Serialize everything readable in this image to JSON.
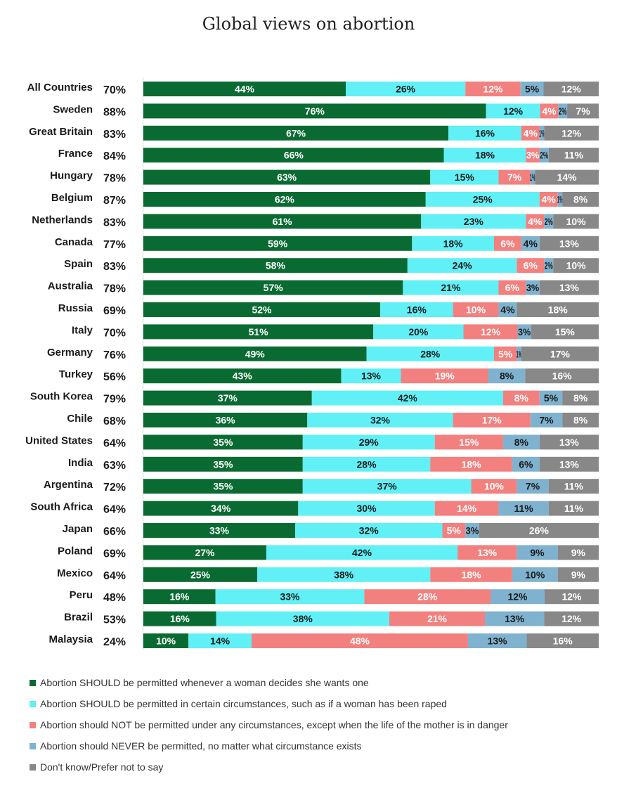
{
  "title": "Global views on abortion",
  "colors": {
    "whenever": "#0a6b32",
    "certain": "#60f0f6",
    "except_life": "#f2807e",
    "never": "#7fb2cf",
    "dont_know": "#888888"
  },
  "chart_data": {
    "type": "bar",
    "orientation": "horizontal",
    "stacked": true,
    "title": "Global views on abortion",
    "categories": [
      "All Countries",
      "Sweden",
      "Great Britain",
      "France",
      "Hungary",
      "Belgium",
      "Netherlands",
      "Canada",
      "Spain",
      "Australia",
      "Russia",
      "Italy",
      "Germany",
      "Turkey",
      "South Korea",
      "Chile",
      "United States",
      "India",
      "Argentina",
      "South Africa",
      "Japan",
      "Poland",
      "Mexico",
      "Peru",
      "Brazil",
      "Malaysia"
    ],
    "support_totals": [
      "70%",
      "88%",
      "83%",
      "84%",
      "78%",
      "87%",
      "83%",
      "77%",
      "83%",
      "78%",
      "69%",
      "70%",
      "76%",
      "56%",
      "79%",
      "68%",
      "64%",
      "63%",
      "72%",
      "64%",
      "66%",
      "69%",
      "64%",
      "48%",
      "53%",
      "24%"
    ],
    "series": [
      {
        "name": "Abortion SHOULD be permitted whenever a woman decides she wants one",
        "key": "whenever",
        "values": [
          44,
          76,
          67,
          66,
          63,
          62,
          61,
          59,
          58,
          57,
          52,
          51,
          49,
          43,
          37,
          36,
          35,
          35,
          35,
          34,
          33,
          27,
          25,
          16,
          16,
          10
        ]
      },
      {
        "name": "Abortion SHOULD be permitted in certain circumstances, such as if a woman has been raped",
        "key": "certain",
        "values": [
          26,
          12,
          16,
          18,
          15,
          25,
          23,
          18,
          24,
          21,
          16,
          20,
          28,
          13,
          42,
          32,
          29,
          28,
          37,
          30,
          32,
          42,
          38,
          33,
          38,
          14
        ]
      },
      {
        "name": "Abortion should NOT be permitted under any circumstances, except when the life of the mother is in danger",
        "key": "except_life",
        "values": [
          12,
          4,
          4,
          3,
          7,
          4,
          4,
          6,
          6,
          6,
          10,
          12,
          5,
          19,
          8,
          17,
          15,
          18,
          10,
          14,
          5,
          13,
          18,
          28,
          21,
          48
        ]
      },
      {
        "name": "Abortion should NEVER be permitted, no matter what circumstance exists",
        "key": "never",
        "values": [
          5,
          2,
          1,
          2,
          1,
          1,
          2,
          4,
          2,
          3,
          4,
          3,
          1,
          8,
          5,
          7,
          8,
          6,
          7,
          11,
          3,
          9,
          10,
          12,
          13,
          13
        ]
      },
      {
        "name": "Don't know/Prefer not to say",
        "key": "dont_know",
        "values": [
          12,
          7,
          12,
          11,
          14,
          8,
          10,
          13,
          10,
          13,
          18,
          15,
          17,
          16,
          8,
          8,
          13,
          13,
          11,
          11,
          26,
          9,
          9,
          12,
          12,
          16
        ]
      }
    ],
    "value_suffix": "%",
    "legend_position": "bottom",
    "grid": false
  }
}
